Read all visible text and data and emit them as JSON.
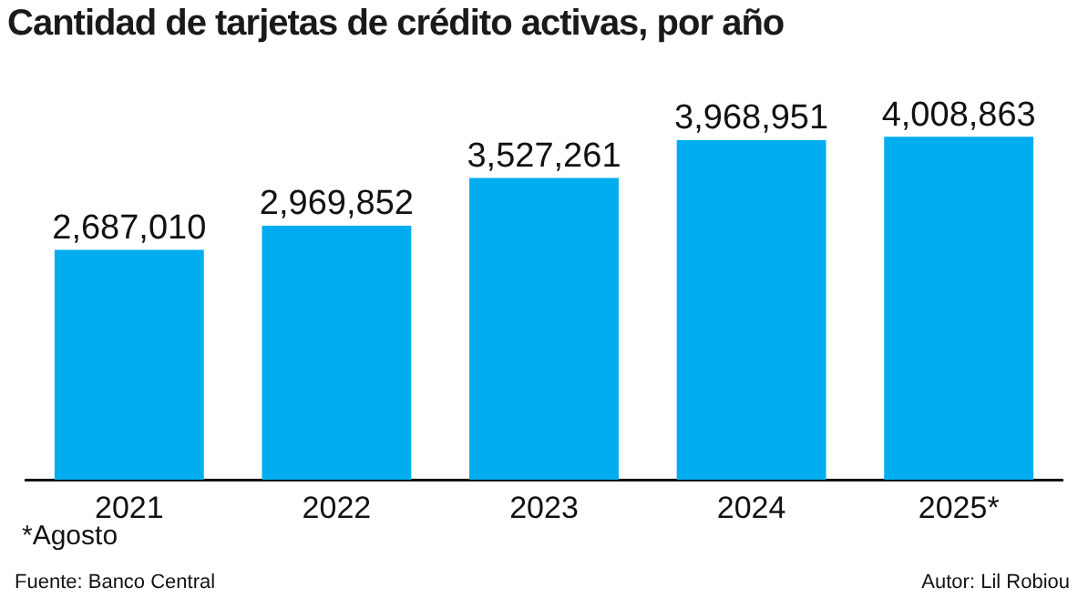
{
  "chart_data": {
    "type": "bar",
    "title": "Cantidad de tarjetas de crédito activas, por año",
    "categories": [
      "2021",
      "2022",
      "2023",
      "2024",
      "2025*"
    ],
    "values": [
      2687010,
      2969852,
      3527261,
      3968951,
      4008863
    ],
    "color": "#00adef",
    "value_labels": [
      "2,687,010",
      "2,969,852",
      "3,527,261",
      "3,968,951",
      "4,008,863"
    ],
    "grid": false,
    "legend": false,
    "annotations": [
      "*Agosto",
      "Fuente: Banco Central",
      "Autor: Lil Robiou"
    ]
  }
}
